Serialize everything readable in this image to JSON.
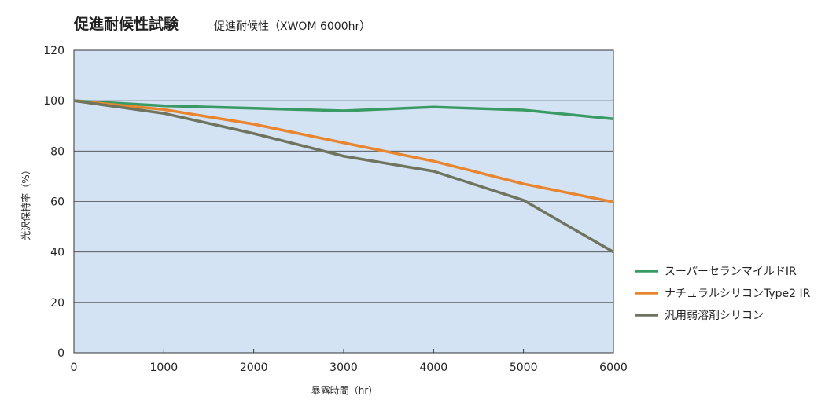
{
  "chart_data": {
    "type": "line",
    "title": "促進耐候性試験",
    "subtitle": "促進耐候性（XWOM 6000hr）",
    "xlabel": "暴露時間（hr）",
    "ylabel": "光沢保持率（%）",
    "x": [
      0,
      1000,
      2000,
      3000,
      4000,
      5000,
      6000
    ],
    "xlim": [
      0,
      6000
    ],
    "ylim": [
      0,
      120
    ],
    "xticks": [
      "0",
      "1000",
      "2000",
      "3000",
      "4000",
      "5000",
      "6000"
    ],
    "yticks": [
      "0",
      "20",
      "40",
      "60",
      "80",
      "100",
      "120"
    ],
    "grid": true,
    "legend_position": "right",
    "plot_background": "#d3e3f4",
    "series": [
      {
        "name": "スーパーセランマイルドIR",
        "color": "#3a9a63",
        "values": [
          100,
          98,
          97,
          96,
          97.5,
          96.3,
          92.8
        ]
      },
      {
        "name": "ナチュラルシリコンType2 IR",
        "color": "#e8852e",
        "values": [
          100,
          96.5,
          90.7,
          83.3,
          76,
          67,
          59.8
        ]
      },
      {
        "name": "汎用弱溶剤シリコン",
        "color": "#6e745e",
        "values": [
          100,
          95,
          87,
          78,
          72,
          60.5,
          40
        ]
      }
    ]
  }
}
